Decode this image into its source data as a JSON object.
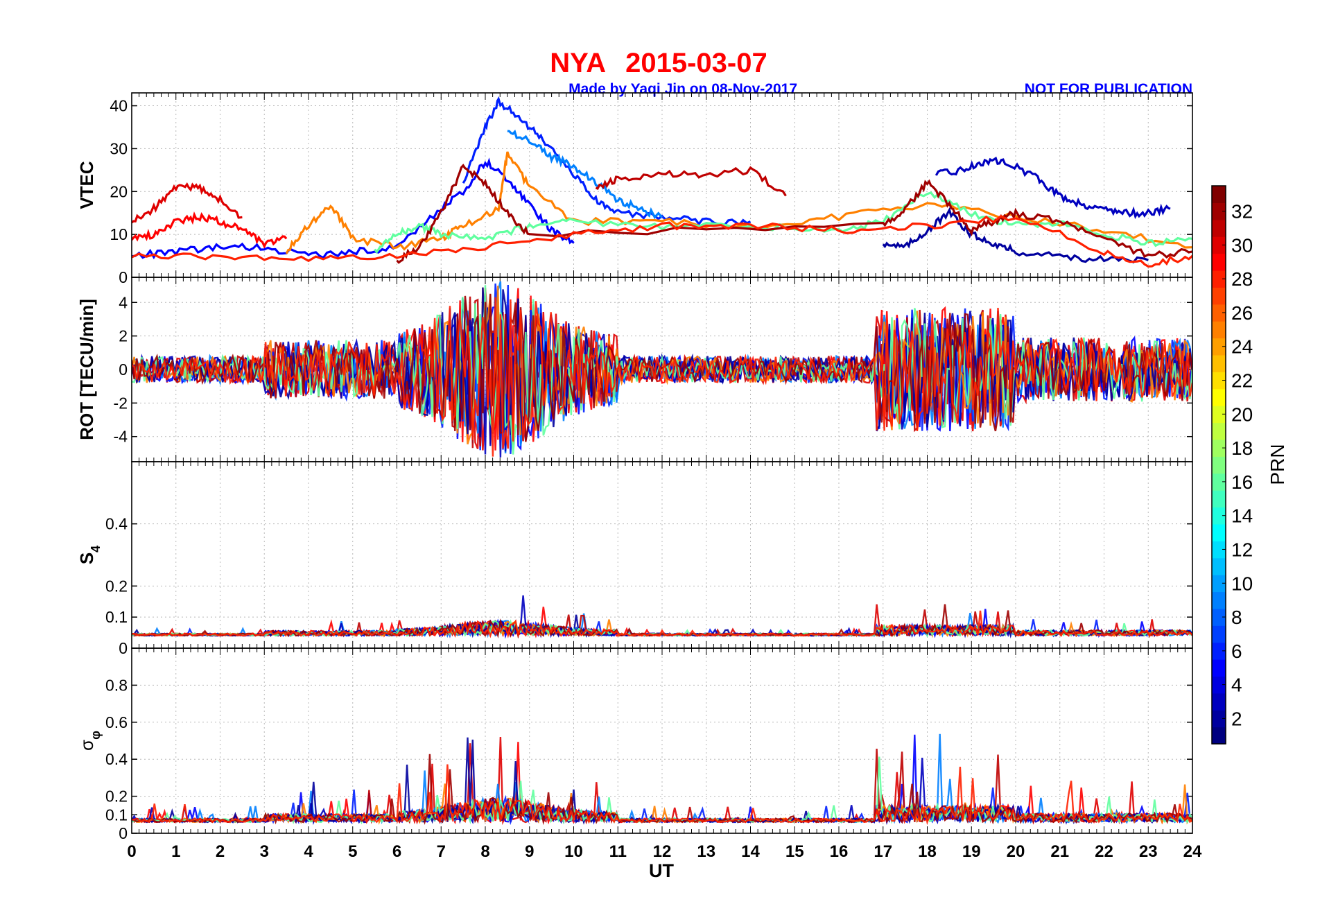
{
  "title": {
    "station": "NYA",
    "date": "2015-03-07"
  },
  "credit": {
    "made_by": "Made by Yaqi Jin on 08-Nov-2017",
    "notice": "NOT FOR PUBLICATION"
  },
  "xaxis": {
    "label": "UT",
    "ticks": [
      "0",
      "1",
      "2",
      "3",
      "4",
      "5",
      "6",
      "7",
      "8",
      "9",
      "10",
      "11",
      "12",
      "13",
      "14",
      "15",
      "16",
      "17",
      "18",
      "19",
      "20",
      "21",
      "22",
      "23",
      "24"
    ]
  },
  "panels": [
    {
      "id": "vtec",
      "ylabel": "VTEC",
      "ylim": [
        0,
        43
      ],
      "ticks": [
        0,
        10,
        20,
        30,
        40
      ]
    },
    {
      "id": "rot",
      "ylabel": "ROT [TECU/min]",
      "ylim": [
        -5.5,
        5.5
      ],
      "ticks": [
        -4,
        -2,
        0,
        2,
        4
      ]
    },
    {
      "id": "s4",
      "ylabel": "S4",
      "ylim": [
        0,
        0.6
      ],
      "ticks": [
        0,
        0.1,
        0.2,
        0.4
      ]
    },
    {
      "id": "sigphi",
      "ylabel": "σφ",
      "ylim": [
        0,
        1
      ],
      "ticks": [
        0,
        0.1,
        0.2,
        0.4,
        0.6,
        0.8
      ]
    }
  ],
  "colorbar": {
    "label": "PRN",
    "ticks": [
      "2",
      "4",
      "6",
      "8",
      "10",
      "12",
      "14",
      "16",
      "18",
      "20",
      "22",
      "24",
      "26",
      "28",
      "30",
      "32"
    ],
    "range": [
      1,
      33
    ],
    "colormap": "jet"
  },
  "chart_data": {
    "type": "line",
    "xlim": [
      0,
      24
    ],
    "grid": true,
    "color_by": "PRN",
    "series": [
      {
        "prn": 30,
        "panel": "vtec",
        "x": [
          0,
          0.5,
          1,
          1.5,
          2,
          2.5
        ],
        "y": [
          13,
          16,
          21,
          21,
          18,
          14
        ]
      },
      {
        "prn": 29,
        "panel": "vtec",
        "x": [
          0,
          0.5,
          1,
          1.5,
          2,
          2.5,
          3,
          3.5
        ],
        "y": [
          9,
          10,
          13,
          14,
          13,
          11,
          8,
          9
        ]
      },
      {
        "prn": 5,
        "panel": "vtec",
        "x": [
          0,
          1,
          2,
          3,
          4,
          5,
          6,
          7,
          7.5,
          8,
          8.5,
          9,
          9.5,
          10
        ],
        "y": [
          5,
          6,
          7,
          7,
          5,
          6,
          7,
          16,
          20,
          27,
          23,
          17,
          11,
          8
        ]
      },
      {
        "prn": 6,
        "panel": "vtec",
        "x": [
          7.5,
          8,
          8.3,
          8.8,
          9.3,
          10,
          10.5,
          11,
          12,
          13,
          14
        ],
        "y": [
          22,
          35,
          41,
          37,
          32,
          24,
          18,
          15,
          14,
          13,
          13
        ]
      },
      {
        "prn": 9,
        "panel": "vtec",
        "x": [
          8.5,
          9,
          9.5,
          10,
          10.5,
          11,
          11.5,
          12
        ],
        "y": [
          34,
          32,
          28,
          26,
          22,
          18,
          16,
          14
        ]
      },
      {
        "prn": 31,
        "panel": "vtec",
        "x": [
          10.5,
          11,
          12,
          13,
          14,
          14.8
        ],
        "y": [
          21,
          23,
          24,
          24,
          25,
          19
        ]
      },
      {
        "prn": 3,
        "panel": "vtec",
        "x": [
          18.2,
          18.8,
          19.3,
          19.8,
          20.5,
          21,
          21.5,
          22,
          22.5,
          23,
          23.5
        ],
        "y": [
          24,
          25,
          27,
          27,
          23,
          19,
          17,
          16,
          15,
          15,
          16
        ]
      },
      {
        "prn": 25,
        "panel": "vtec",
        "x": [
          3.5,
          4,
          4.5,
          5,
          6,
          7,
          7.5,
          8.3,
          8.5,
          9,
          10,
          12,
          14,
          16,
          18,
          20,
          22,
          24
        ],
        "y": [
          6,
          12,
          17,
          9,
          7,
          9,
          12,
          16,
          29,
          21,
          13,
          13,
          12,
          14,
          17,
          14,
          11,
          7
        ]
      },
      {
        "prn": 2,
        "panel": "vtec",
        "x": [
          17,
          17.5,
          18,
          18.5,
          19,
          19.5,
          20,
          21,
          22,
          23
        ],
        "y": [
          8,
          7,
          11,
          15,
          10,
          8,
          6,
          5,
          4,
          4
        ]
      },
      {
        "prn": 16,
        "panel": "vtec",
        "x": [
          5.5,
          6,
          6.5,
          7,
          8,
          9,
          10,
          12,
          14,
          16,
          17,
          18,
          19,
          20,
          21,
          22,
          23,
          24
        ],
        "y": [
          6,
          10,
          12,
          10,
          9,
          12,
          13,
          12,
          12,
          11,
          13,
          20,
          15,
          12,
          13,
          10,
          8,
          9
        ]
      },
      {
        "prn": 32,
        "panel": "vtec",
        "x": [
          6,
          6.5,
          7,
          7.5,
          8,
          8.5,
          9,
          17,
          17.5,
          18,
          18.5,
          19,
          19.5,
          20,
          21,
          22,
          23,
          24
        ],
        "y": [
          4,
          7,
          15,
          26,
          22,
          15,
          10,
          12,
          16,
          22,
          17,
          11,
          13,
          15,
          13,
          9,
          5,
          6
        ]
      },
      {
        "prn": 28,
        "panel": "vtec",
        "x": [
          0,
          2,
          4,
          6,
          8,
          10,
          12,
          14,
          16,
          18,
          20,
          22,
          23,
          24
        ],
        "y": [
          5,
          5,
          4,
          5,
          7,
          10,
          12,
          12,
          11,
          12,
          14,
          6,
          3,
          5
        ]
      }
    ]
  }
}
